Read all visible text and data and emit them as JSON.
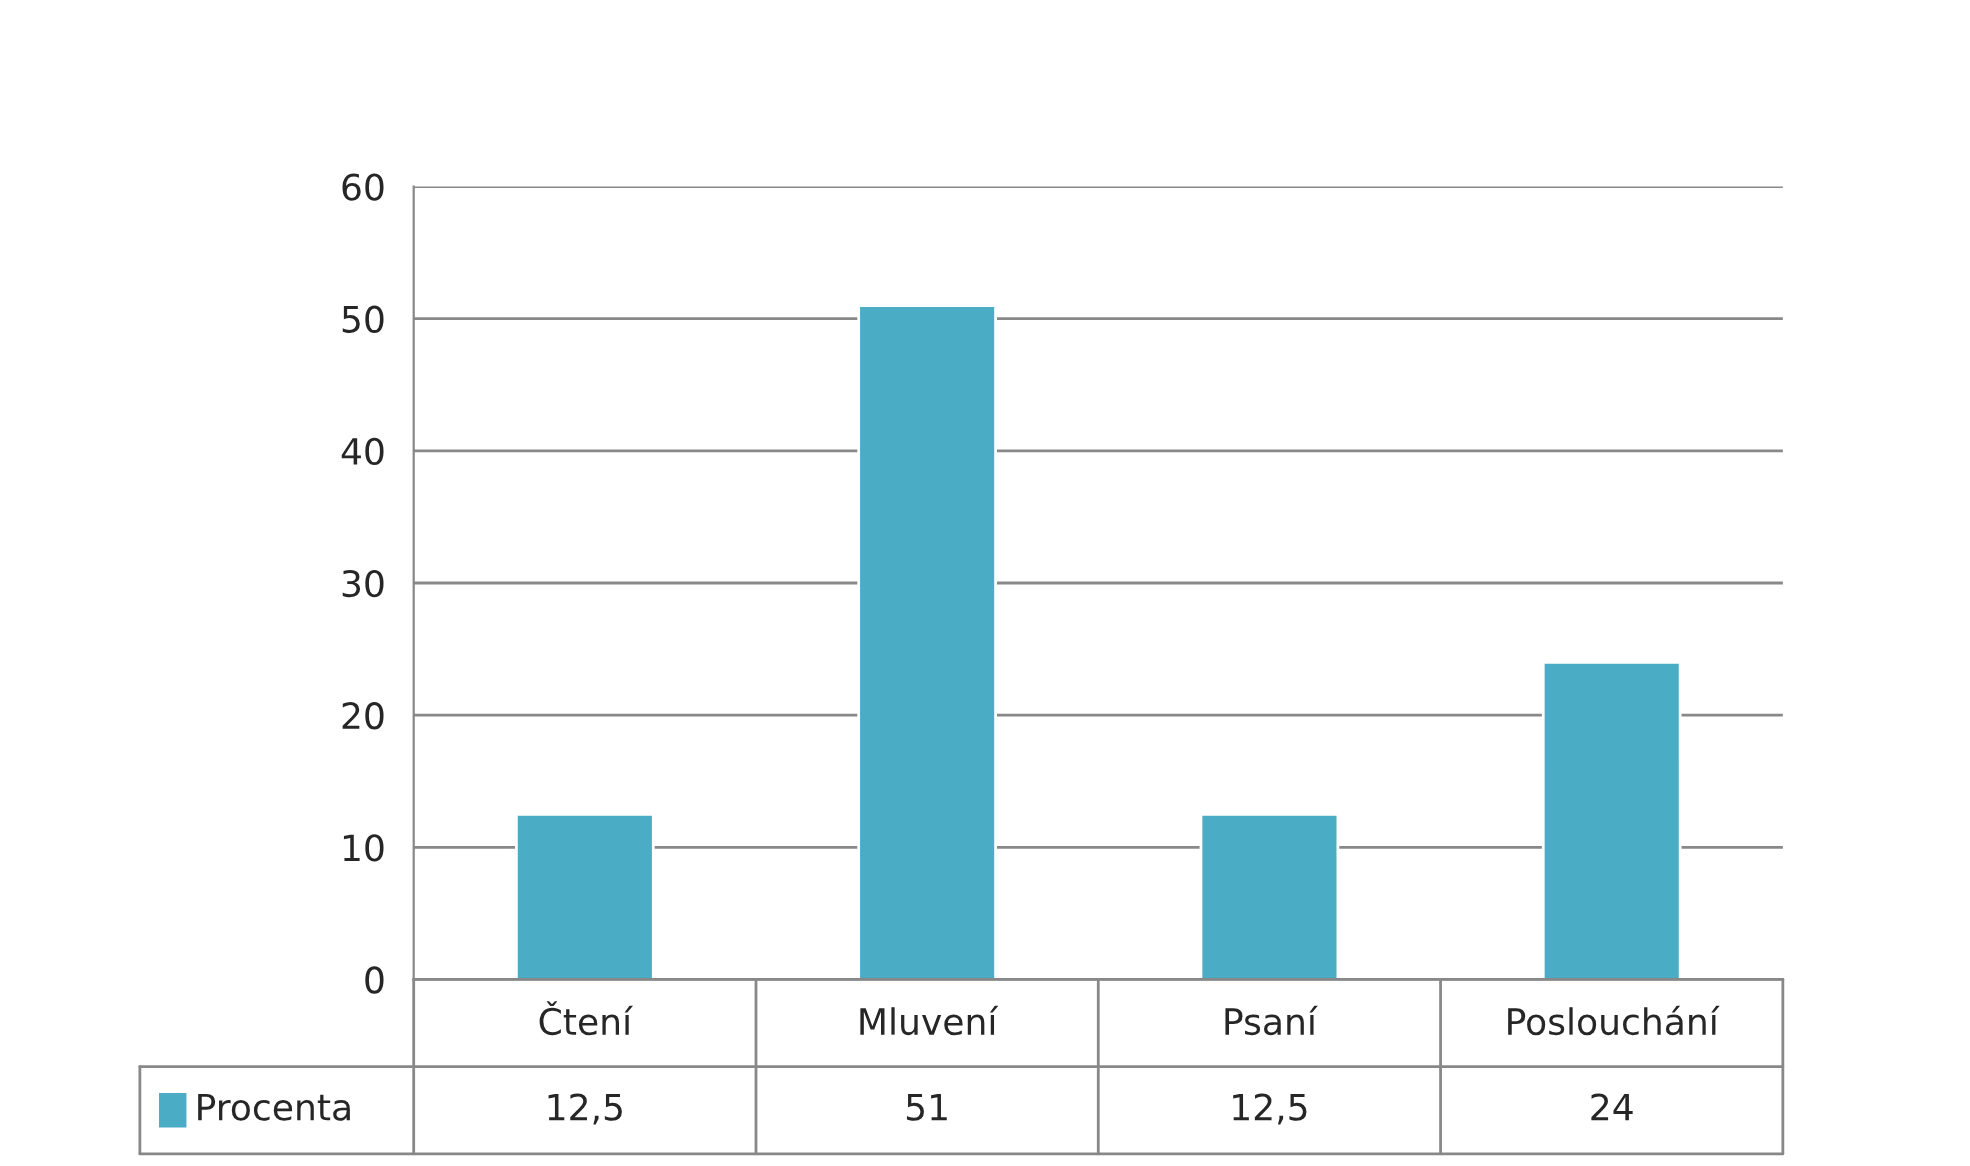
{
  "chart_data": {
    "type": "bar",
    "categories": [
      "Čtení",
      "Mluvení",
      "Psaní",
      "Poslouchání"
    ],
    "series": [
      {
        "name": "Procenta",
        "color": "#4bacc6",
        "values": [
          12.5,
          51,
          12.5,
          24
        ],
        "value_labels": [
          "12,5",
          "51",
          "12,5",
          "24"
        ]
      }
    ],
    "ylim": [
      0,
      60
    ],
    "yticks": [
      0,
      10,
      20,
      30,
      40,
      50,
      60
    ],
    "grid": "y",
    "legend": "bottom"
  }
}
